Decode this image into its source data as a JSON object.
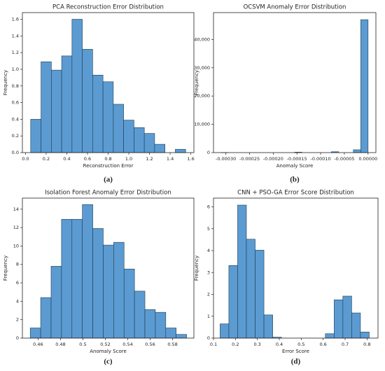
{
  "chart_data": [
    {
      "type": "histogram",
      "title": "PCA Reconstruction Error Distribution",
      "panel": "(a)",
      "x_label": "Reconstruction Error",
      "y_label": "Frequency",
      "color": "#5b9bd1",
      "bins": [
        0.05,
        0.15,
        0.25,
        0.35,
        0.45,
        0.55,
        0.65,
        0.75,
        0.85,
        0.95,
        1.05,
        1.15,
        1.25,
        1.35,
        1.45,
        1.55
      ],
      "values": [
        0.4,
        1.09,
        0.99,
        1.16,
        1.6,
        1.24,
        0.93,
        0.85,
        0.58,
        0.39,
        0.3,
        0.23,
        0.1,
        0,
        0.04
      ],
      "xlim": [
        -0.03,
        1.63
      ],
      "ylim": [
        0,
        1.68
      ],
      "xticks": [
        {
          "value": 0,
          "label": "0.0"
        },
        0.2,
        0.4,
        0.6,
        0.8,
        {
          "value": 1,
          "label": "1.0"
        },
        1.2,
        1.4,
        1.6
      ],
      "yticks": [
        {
          "value": 0,
          "label": "0.0"
        },
        0.2,
        0.4,
        0.6,
        0.8,
        {
          "value": 1,
          "label": "1.0"
        },
        1.2,
        1.4,
        1.6
      ]
    },
    {
      "type": "histogram",
      "title": "OCSVM Anomaly Error Distribution",
      "panel": "(b)",
      "x_label": "Anomaly Score",
      "y_label": "Frequency",
      "color": "#5b9bd1",
      "bins": [
        -0.00031,
        -0.0002945,
        -0.000279,
        -0.0002635,
        -0.000248,
        -0.0002325,
        -0.000217,
        -0.0002015,
        -0.000186,
        -0.0001705,
        -0.000155,
        -0.0001395,
        -0.000124,
        -0.0001085,
        -9.3e-05,
        -7.75e-05,
        -6.2e-05,
        -4.65e-05,
        -3.1e-05,
        -1.55e-05,
        0
      ],
      "values": [
        30,
        0,
        0,
        0,
        0,
        0,
        0,
        0,
        0,
        0,
        150,
        0,
        0,
        0,
        0,
        300,
        0,
        0,
        1000,
        47000
      ],
      "xlim": [
        -0.000326,
        1.65e-05
      ],
      "ylim": [
        0,
        49500
      ],
      "xticks": [
        {
          "value": -0.0003,
          "label": "-0.00030"
        },
        {
          "value": -0.00025,
          "label": "-0.00025"
        },
        {
          "value": -0.0002,
          "label": "-0.00020"
        },
        {
          "value": -0.00015,
          "label": "-0.00015"
        },
        {
          "value": -0.0001,
          "label": "-0.00010"
        },
        {
          "value": -5e-05,
          "label": "-0.00005"
        },
        {
          "value": 0,
          "label": "0.00000"
        }
      ],
      "yticks": [
        0,
        {
          "value": 10000,
          "label": "10,000"
        },
        {
          "value": 20000,
          "label": "20,000"
        },
        {
          "value": 30000,
          "label": "30,000"
        },
        {
          "value": 40000,
          "label": "40,000"
        }
      ]
    },
    {
      "type": "histogram",
      "title": "Isolation Forest Anomaly Error Distribution",
      "panel": "(c)",
      "x_label": "Anomaly Score",
      "y_label": "Frequency",
      "color": "#5b9bd1",
      "bins": [
        0.453,
        0.4623,
        0.4716,
        0.4809,
        0.4902,
        0.4995,
        0.5088,
        0.5181,
        0.5274,
        0.5367,
        0.546,
        0.5553,
        0.5646,
        0.5739,
        0.5832,
        0.5925
      ],
      "values": [
        1.1,
        4.4,
        7.8,
        12.9,
        12.9,
        14.5,
        11.9,
        10.1,
        10.4,
        7.5,
        5.1,
        3.1,
        2.8,
        1.1,
        0.4
      ],
      "xlim": [
        0.446,
        0.599
      ],
      "ylim": [
        0,
        15.2
      ],
      "xticks": [
        0.46,
        0.48,
        0.5,
        0.52,
        0.54,
        0.56,
        0.58
      ],
      "yticks": [
        0,
        2,
        4,
        6,
        8,
        10,
        12,
        14
      ]
    },
    {
      "type": "histogram",
      "title": "CNN + PSO-GA Error Score Distribution",
      "panel": "(d)",
      "x_label": "Error Score",
      "y_label": "Frequency",
      "color": "#5b9bd1",
      "bins": [
        0.13,
        0.17,
        0.21,
        0.25,
        0.29,
        0.33,
        0.37,
        0.41,
        0.45,
        0.49,
        0.53,
        0.57,
        0.61,
        0.65,
        0.69,
        0.73,
        0.77,
        0.81
      ],
      "values": [
        0.65,
        3.32,
        6.08,
        4.52,
        4.02,
        1.06,
        0.04,
        0,
        0,
        0,
        0,
        0,
        0.2,
        1.75,
        1.92,
        1.15,
        0.28
      ],
      "xlim": [
        0.1,
        0.85
      ],
      "ylim": [
        0,
        6.4
      ],
      "xticks": [
        0.1,
        0.2,
        0.3,
        0.4,
        0.5,
        0.6,
        0.7,
        0.8
      ],
      "yticks": [
        0,
        1,
        2,
        3,
        4,
        5,
        6
      ]
    }
  ]
}
